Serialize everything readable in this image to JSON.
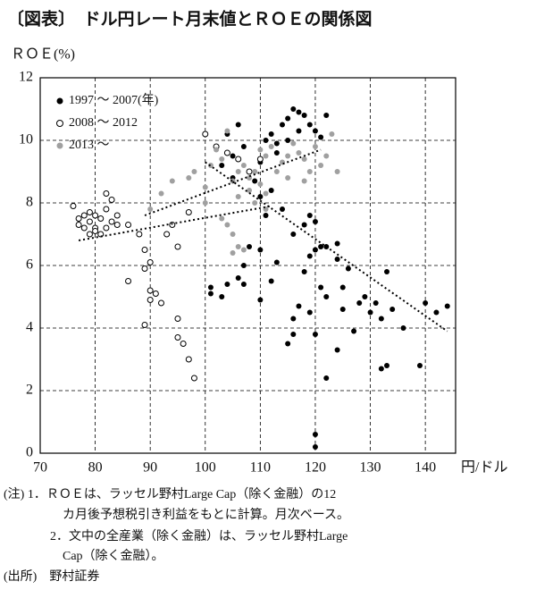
{
  "chart_data": {
    "type": "scatter",
    "title": "〔図表〕　ドル円レート月末値とＲＯＥの関係図",
    "y_label": "ＲＯＥ(%)",
    "x_label": "円/ドル",
    "xlim": [
      70,
      145.5
    ],
    "ylim": [
      0,
      12
    ],
    "xticks": [
      70,
      80,
      90,
      100,
      110,
      120,
      130,
      140
    ],
    "yticks": [
      0,
      2,
      4,
      6,
      8,
      10,
      12
    ],
    "grid": true,
    "legend": "upper-left",
    "series": [
      {
        "name": "1997 ～ 2007(年)",
        "color": "#000000",
        "hollow": false,
        "x": [
          105,
          104,
          106,
          107,
          103,
          105,
          108,
          110,
          111,
          112,
          113,
          114,
          115,
          116,
          117,
          118,
          119,
          120,
          121,
          122,
          117,
          115,
          113,
          109,
          110,
          111,
          112,
          114,
          116,
          118,
          119,
          120,
          121,
          122,
          124,
          124,
          120,
          119,
          118,
          121,
          122,
          125,
          126,
          128,
          129,
          131,
          132,
          133,
          134,
          136,
          140,
          142,
          144,
          139,
          133,
          132,
          124,
          122,
          120,
          116,
          115,
          116,
          117,
          119,
          120,
          120,
          101,
          101,
          103,
          104,
          106,
          107,
          108,
          110,
          112,
          113,
          110,
          107,
          125,
          127,
          130
        ],
        "values": [
          9.5,
          10.2,
          10.5,
          9.8,
          9.2,
          8.8,
          9.0,
          9.3,
          10.0,
          10.2,
          9.9,
          10.5,
          10.7,
          11.0,
          10.9,
          10.8,
          10.5,
          10.3,
          10.1,
          10.8,
          10.3,
          10.0,
          9.6,
          8.7,
          8.2,
          7.6,
          8.4,
          7.8,
          7.0,
          7.3,
          7.6,
          7.4,
          6.6,
          6.6,
          6.7,
          6.2,
          6.5,
          6.3,
          5.8,
          5.3,
          5.0,
          5.3,
          5.9,
          4.8,
          5.0,
          4.8,
          4.3,
          5.8,
          4.6,
          4.0,
          4.8,
          4.5,
          4.7,
          2.8,
          2.8,
          2.7,
          3.3,
          2.4,
          3.8,
          3.8,
          3.5,
          4.3,
          4.7,
          4.5,
          0.6,
          0.2,
          5.3,
          5.1,
          5.0,
          5.4,
          5.6,
          6.0,
          6.6,
          4.9,
          5.5,
          6.1,
          6.5,
          5.4,
          4.6,
          3.9,
          4.5
        ],
        "trend": {
          "x": [
            100,
            144
          ],
          "values": [
            9.3,
            3.9
          ]
        }
      },
      {
        "name": "2008 ～ 2012",
        "color": "#000000",
        "hollow": true,
        "x": [
          76,
          77,
          77,
          78,
          78,
          79,
          79,
          80,
          80,
          81,
          81,
          82,
          82,
          83,
          83,
          84,
          80,
          79,
          84,
          82,
          86,
          86,
          88,
          89,
          89,
          90,
          90,
          91,
          89,
          90,
          92,
          93,
          95,
          95,
          95,
          96,
          97,
          98,
          97,
          94,
          100,
          102,
          104,
          106,
          108,
          110
        ],
        "values": [
          7.9,
          7.5,
          7.3,
          7.6,
          7.2,
          7.7,
          7.4,
          7.6,
          7.2,
          7.5,
          7.0,
          7.8,
          8.3,
          8.1,
          7.4,
          7.6,
          7.1,
          7.0,
          7.3,
          7.2,
          7.3,
          5.5,
          7.0,
          6.5,
          5.9,
          5.2,
          4.9,
          5.1,
          4.1,
          6.1,
          4.8,
          7.0,
          6.6,
          4.3,
          3.7,
          3.5,
          3.0,
          2.4,
          7.7,
          7.3,
          10.2,
          9.8,
          9.6,
          9.4,
          9.0,
          9.4
        ],
        "trend": {
          "x": [
            77,
            112
          ],
          "values": [
            6.8,
            7.9
          ]
        }
      },
      {
        "name": "2013 ～",
        "color": "#a0a0a0",
        "hollow": false,
        "x": [
          90,
          92,
          94,
          97,
          98,
          100,
          101,
          102,
          103,
          104,
          105,
          106,
          107,
          108,
          109,
          110,
          111,
          112,
          113,
          114,
          115,
          116,
          117,
          118,
          119,
          120,
          121,
          122,
          123,
          124,
          108,
          109,
          110,
          111,
          104,
          105,
          106,
          107,
          105,
          103,
          111,
          100,
          106,
          115,
          118
        ],
        "values": [
          7.8,
          8.3,
          8.7,
          8.8,
          9.0,
          8.5,
          9.2,
          9.7,
          9.4,
          10.3,
          8.7,
          9.0,
          9.2,
          8.8,
          9.0,
          9.7,
          9.5,
          9.8,
          9.0,
          9.3,
          9.5,
          9.9,
          9.6,
          9.4,
          9.0,
          9.8,
          9.2,
          9.5,
          10.2,
          9.0,
          8.4,
          8.0,
          8.6,
          8.3,
          7.3,
          7.0,
          6.6,
          6.5,
          6.4,
          7.5,
          7.8,
          8.0,
          8.2,
          8.8,
          8.7
        ],
        "trend": {
          "x": [
            89,
            121
          ],
          "values": [
            7.6,
            9.7
          ]
        }
      }
    ],
    "notes": [
      "(注) 1．ＲＯＥは、ラッセル野村Large Cap（除く金融）の12",
      "カ月後予想税引き利益をもとに計算。月次ベース。",
      "2．文中の全産業（除く金融）は、ラッセル野村Large",
      "Cap（除く金融）。",
      "(出所)　野村証券"
    ]
  }
}
